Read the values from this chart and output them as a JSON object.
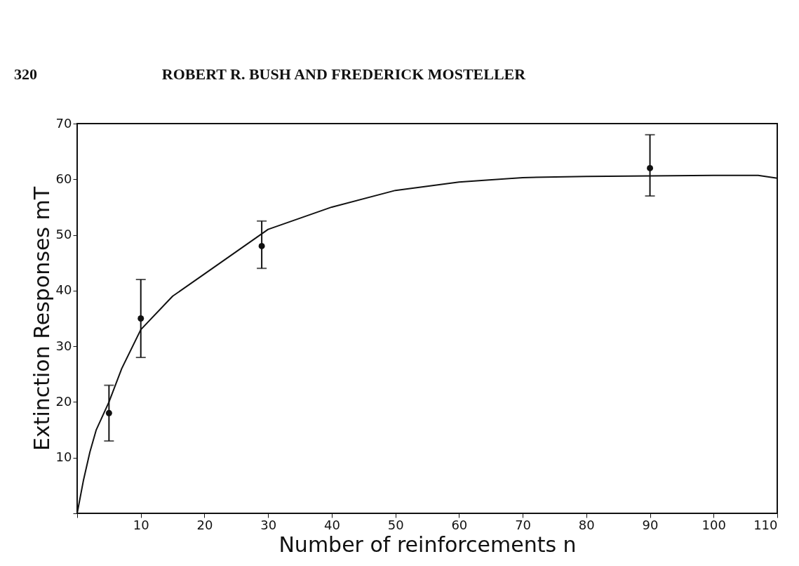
{
  "chart_data": {
    "type": "scatter",
    "xlabel": "Number of reinforcements n",
    "ylabel": "Extinction Responses mT",
    "annotations": [
      "320",
      "ROBERT R. BUSH AND FREDERICK MOSTELLER"
    ],
    "xlim": [
      0,
      110
    ],
    "ylim": [
      0,
      70
    ],
    "xticks": [
      {
        "value": 0,
        "label": null
      },
      10,
      20,
      30,
      40,
      50,
      60,
      70,
      80,
      90,
      100,
      110
    ],
    "yticks": [
      {
        "value": 0,
        "label": null
      },
      10,
      20,
      30,
      40,
      50,
      60,
      70
    ],
    "grid": false,
    "series": [
      {
        "marker": "circle",
        "color": "#111111",
        "x": [
          5,
          10,
          29,
          90
        ],
        "values": [
          18,
          35,
          48,
          62
        ],
        "errors": [
          [
            13,
            23
          ],
          [
            28,
            42
          ],
          [
            44,
            52.5
          ],
          [
            57,
            68
          ]
        ]
      },
      {
        "type": "line",
        "color": "#111111",
        "line_style": "solid",
        "x": [
          0,
          1,
          2,
          3,
          5,
          7,
          10,
          15,
          20,
          25,
          30,
          40,
          50,
          60,
          70,
          80,
          90,
          100,
          107,
          110
        ],
        "values": [
          0,
          6,
          11,
          15,
          20,
          26,
          33,
          39,
          43,
          47,
          51,
          55,
          58,
          59.5,
          60.3,
          60.5,
          60.6,
          60.7,
          60.7,
          60.2
        ]
      }
    ]
  }
}
